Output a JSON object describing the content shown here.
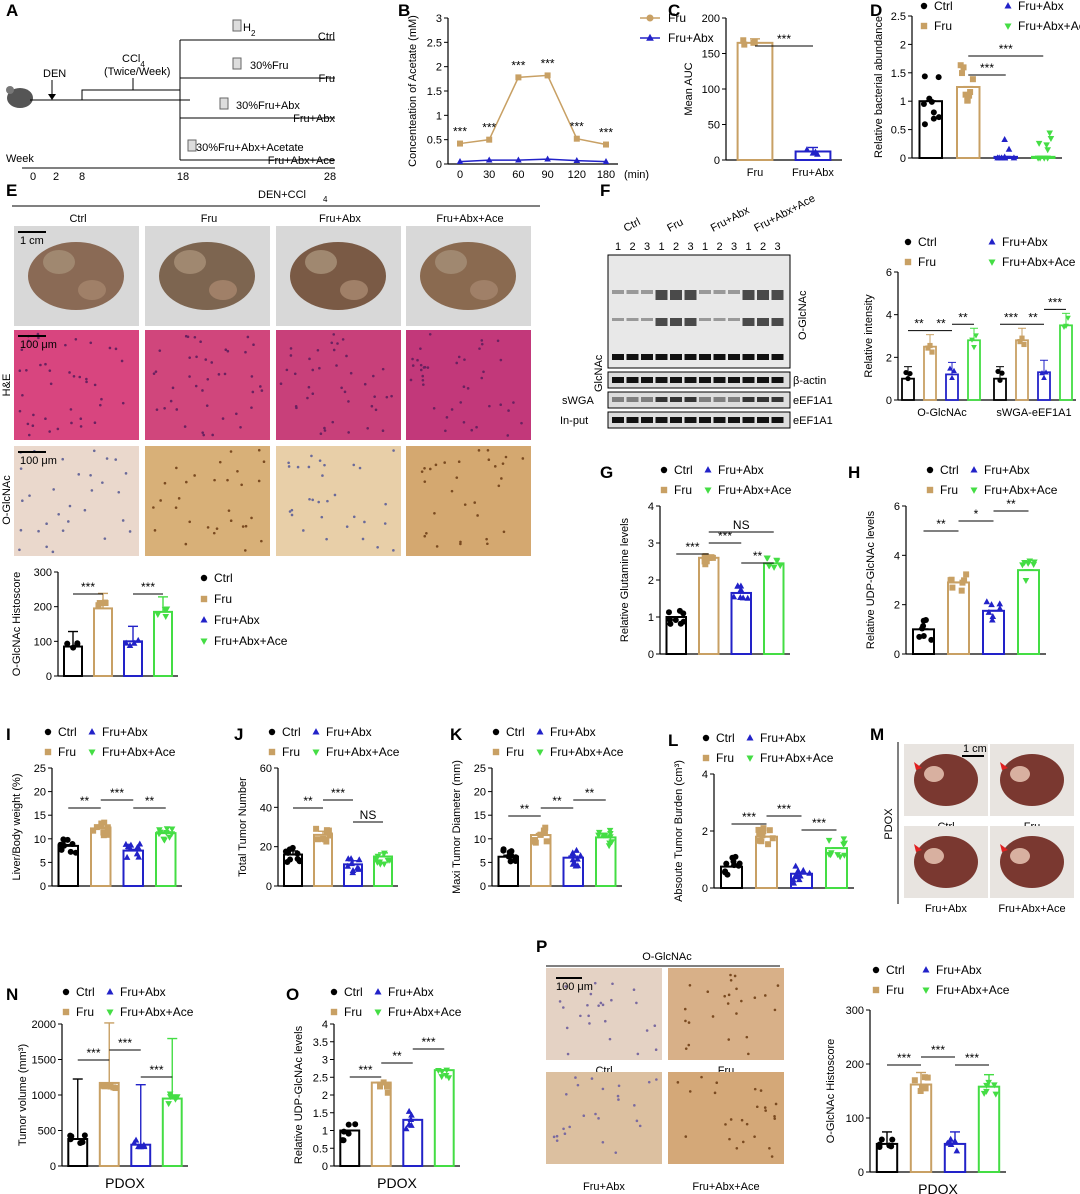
{
  "colors": {
    "ctrl": "#000000",
    "fru": "#c8a064",
    "abx": "#2222c8",
    "ace": "#44dd44"
  },
  "groups": [
    "Ctrl",
    "Fru",
    "Fru+Abx",
    "Fru+Abx+Ace"
  ],
  "panel_labels": [
    "A",
    "B",
    "C",
    "D",
    "E",
    "F",
    "G",
    "H",
    "I",
    "J",
    "K",
    "L",
    "M",
    "N",
    "O",
    "P"
  ],
  "panelA": {
    "week_label": "Week",
    "week_ticks": [
      "0",
      "2",
      "8",
      "18",
      "28"
    ],
    "den": "DEN",
    "ccl4": "CCl4",
    "ccl4_note": "(Twice/Week)",
    "treatments": [
      {
        "drink": "H2O",
        "group": "Ctrl"
      },
      {
        "drink": "30%Fru",
        "group": "Fru"
      },
      {
        "drink": "30%Fru+Abx",
        "group": "Fru+Abx"
      },
      {
        "drink": "30%Fru+Abx+Acetate",
        "group": "Fru+Abx+Ace"
      }
    ]
  },
  "panelE": {
    "header": "DEN+CCl4",
    "scale_liver": "1 cm",
    "scale_he": "100 μm",
    "scale_ihc": "100 μm",
    "row_labels": [
      "H&E",
      "O-GlcNAc"
    ]
  },
  "panelF": {
    "lanes": [
      "1",
      "2",
      "3",
      "1",
      "2",
      "3",
      "1",
      "2",
      "3",
      "1",
      "2",
      "3"
    ],
    "blot_labels": [
      "O-GlcNAc",
      "β-actin",
      "eEF1A1",
      "eEF1A1"
    ],
    "left_labels": [
      "GlcNAc",
      "sWGA",
      "In-put"
    ]
  },
  "panelM": {
    "side": "PDOX",
    "scale": "1 cm",
    "captions": [
      "Ctrl",
      "Fru",
      "Fru+Abx",
      "Fru+Abx+Ace"
    ]
  },
  "panelP": {
    "header": "O-GlcNAc",
    "scale": "100 μm",
    "captions": [
      "Ctrl",
      "Fru",
      "Fru+Abx",
      "Fru+Abx+Ace"
    ]
  },
  "chart_data": [
    {
      "id": "B",
      "type": "line",
      "x": [
        0,
        30,
        60,
        90,
        120,
        180
      ],
      "xlabel": "(min)",
      "ylabel": "Concenteation of Acetate (mM)",
      "ylim": [
        0,
        3
      ],
      "yticks": [
        0,
        0.5,
        1,
        1.5,
        2,
        2.5,
        3
      ],
      "xticks": [
        "0",
        "30",
        "60",
        "90",
        "120",
        "180"
      ],
      "series": [
        {
          "name": "Fru",
          "values": [
            0.42,
            0.5,
            1.78,
            1.82,
            0.52,
            0.4
          ]
        },
        {
          "name": "Fru+Abx",
          "values": [
            0.05,
            0.08,
            0.08,
            0.1,
            0.07,
            0.05
          ]
        }
      ],
      "sig": [
        "***",
        "***",
        "***",
        "***",
        "***",
        "***"
      ]
    },
    {
      "id": "C",
      "type": "bar",
      "categories": [
        "Fru",
        "Fru+Abx"
      ],
      "values": [
        165,
        12
      ],
      "ylabel": "Mean AUC",
      "ylim": [
        0,
        200
      ],
      "yticks": [
        0,
        50,
        100,
        150,
        200
      ],
      "sig": [
        {
          "from": 0,
          "to": 1,
          "label": "***"
        }
      ]
    },
    {
      "id": "D",
      "type": "bar",
      "categories": [
        "Ctrl",
        "Fru",
        "Fru+Abx",
        "Fru+Abx+Ace"
      ],
      "values": [
        1.0,
        1.25,
        0.02,
        0.02
      ],
      "ylabel": "Relative bacterial abundance",
      "ylim": [
        0,
        2.5
      ],
      "yticks": [
        0,
        0.5,
        1,
        1.5,
        2,
        2.5
      ],
      "sig": [
        {
          "from": 1,
          "to": 2,
          "label": "***"
        },
        {
          "from": 1,
          "to": 3,
          "label": "***"
        }
      ]
    },
    {
      "id": "E",
      "type": "bar",
      "categories": [
        "Ctrl",
        "Fru",
        "Fru+Abx",
        "Fru+Abx+Ace"
      ],
      "values": [
        85,
        195,
        100,
        185
      ],
      "ylabel": "O-GlcNAc Histoscore",
      "ylim": [
        0,
        300
      ],
      "yticks": [
        0,
        100,
        200,
        300
      ],
      "sig": [
        {
          "from": 0,
          "to": 1,
          "label": "***"
        },
        {
          "from": 2,
          "to": 3,
          "label": "***"
        }
      ]
    },
    {
      "id": "F",
      "type": "bar",
      "categories": [
        "O-GlcNAc",
        "sWGA-eEF1A1"
      ],
      "ylabel": "Relative intensity",
      "ylim": [
        0,
        6
      ],
      "yticks": [
        0,
        2,
        4,
        6
      ],
      "series": [
        {
          "name": "Ctrl",
          "values": [
            1.0,
            1.0
          ]
        },
        {
          "name": "Fru",
          "values": [
            2.5,
            2.8
          ]
        },
        {
          "name": "Fru+Abx",
          "values": [
            1.2,
            1.3
          ]
        },
        {
          "name": "Fru+Abx+Ace",
          "values": [
            2.8,
            3.5
          ]
        }
      ],
      "sig": [
        [
          "**",
          "**",
          "**"
        ],
        [
          "***",
          "**",
          "***"
        ]
      ]
    },
    {
      "id": "G",
      "type": "bar",
      "categories": [
        "Ctrl",
        "Fru",
        "Fru+Abx",
        "Fru+Abx+Ace"
      ],
      "values": [
        1.0,
        2.6,
        1.65,
        2.45
      ],
      "ylabel": "Relative Glutamine levels",
      "ylim": [
        0,
        4
      ],
      "yticks": [
        0,
        1,
        2,
        3,
        4
      ],
      "sig": [
        {
          "from": 0,
          "to": 1,
          "label": "***"
        },
        {
          "from": 1,
          "to": 2,
          "label": "***"
        },
        {
          "from": 1,
          "to": 3,
          "label": "NS"
        },
        {
          "from": 2,
          "to": 3,
          "label": "**"
        }
      ]
    },
    {
      "id": "H",
      "type": "bar",
      "categories": [
        "Ctrl",
        "Fru",
        "Fru+Abx",
        "Fru+Abx+Ace"
      ],
      "values": [
        1.0,
        2.9,
        1.75,
        3.4
      ],
      "ylabel": "Relative UDP-GlcNAc levels",
      "ylim": [
        0,
        6
      ],
      "yticks": [
        0,
        2,
        4,
        6
      ],
      "sig": [
        {
          "from": 0,
          "to": 1,
          "label": "**"
        },
        {
          "from": 1,
          "to": 2,
          "label": "*"
        },
        {
          "from": 2,
          "to": 3,
          "label": "**"
        }
      ]
    },
    {
      "id": "I",
      "type": "bar",
      "categories": [
        "Ctrl",
        "Fru",
        "Fru+Abx",
        "Fru+Abx+Ace"
      ],
      "values": [
        8.5,
        12.2,
        7.5,
        11.2
      ],
      "ylabel": "Liver/Body weight (%)",
      "ylim": [
        0,
        25
      ],
      "yticks": [
        0,
        5,
        10,
        15,
        20,
        25
      ],
      "sig": [
        {
          "from": 0,
          "to": 1,
          "label": "**"
        },
        {
          "from": 1,
          "to": 2,
          "label": "***"
        },
        {
          "from": 2,
          "to": 3,
          "label": "**"
        }
      ]
    },
    {
      "id": "J",
      "type": "bar",
      "categories": [
        "Ctrl",
        "Fru",
        "Fru+Abx",
        "Fru+Abx+Ace"
      ],
      "values": [
        16,
        26,
        11,
        15
      ],
      "ylabel": "Total Tumor Number",
      "ylim": [
        0,
        60
      ],
      "yticks": [
        0,
        20,
        40,
        60
      ],
      "sig": [
        {
          "from": 0,
          "to": 1,
          "label": "**"
        },
        {
          "from": 1,
          "to": 2,
          "label": "***"
        },
        {
          "from": 2,
          "to": 3,
          "label": "NS"
        }
      ]
    },
    {
      "id": "K",
      "type": "bar",
      "categories": [
        "Ctrl",
        "Fru",
        "Fru+Abx",
        "Fru+Abx+Ace"
      ],
      "values": [
        6.2,
        10.8,
        6.0,
        10.3
      ],
      "ylabel": "Maxi Tumor Diameter (mm)",
      "ylim": [
        0,
        25
      ],
      "yticks": [
        0,
        5,
        10,
        15,
        20,
        25
      ],
      "sig": [
        {
          "from": 0,
          "to": 1,
          "label": "**"
        },
        {
          "from": 1,
          "to": 2,
          "label": "**"
        },
        {
          "from": 2,
          "to": 3,
          "label": "**"
        }
      ]
    },
    {
      "id": "L",
      "type": "bar",
      "categories": [
        "Ctrl",
        "Fru",
        "Fru+Abx",
        "Fru+Abx+Ace"
      ],
      "values": [
        0.75,
        1.8,
        0.5,
        1.4
      ],
      "ylabel": "Absoute Tumor Burden (cm³)",
      "ylim": [
        0,
        4
      ],
      "yticks": [
        0,
        2,
        4
      ],
      "sig": [
        {
          "from": 0,
          "to": 1,
          "label": "***"
        },
        {
          "from": 1,
          "to": 2,
          "label": "***"
        },
        {
          "from": 2,
          "to": 3,
          "label": "***"
        }
      ]
    },
    {
      "id": "N",
      "type": "bar",
      "categories": [
        "Ctrl",
        "Fru",
        "Fru+Abx",
        "Fru+Abx+Ace"
      ],
      "values": [
        380,
        1170,
        300,
        950
      ],
      "ylabel": "Tumor volume (mm³)",
      "xlabel": "PDOX",
      "ylim": [
        0,
        2000
      ],
      "yticks": [
        0,
        500,
        1000,
        1500,
        2000
      ],
      "sig": [
        {
          "from": 0,
          "to": 1,
          "label": "***"
        },
        {
          "from": 1,
          "to": 2,
          "label": "***"
        },
        {
          "from": 2,
          "to": 3,
          "label": "***"
        }
      ]
    },
    {
      "id": "O",
      "type": "bar",
      "categories": [
        "Ctrl",
        "Fru",
        "Fru+Abx",
        "Fru+Abx+Ace"
      ],
      "values": [
        1.0,
        2.35,
        1.3,
        2.7
      ],
      "ylabel": "Relative UDP-GlcNAc levels",
      "xlabel": "PDOX",
      "ylim": [
        0,
        4
      ],
      "yticks": [
        0,
        0.5,
        1,
        1.5,
        2,
        2.5,
        3,
        3.5,
        4
      ],
      "sig": [
        {
          "from": 0,
          "to": 1,
          "label": "***"
        },
        {
          "from": 1,
          "to": 2,
          "label": "**"
        },
        {
          "from": 2,
          "to": 3,
          "label": "***"
        }
      ]
    },
    {
      "id": "P",
      "type": "bar",
      "categories": [
        "Ctrl",
        "Fru",
        "Fru+Abx",
        "Fru+Abx+Ace"
      ],
      "values": [
        52,
        162,
        52,
        158
      ],
      "ylabel": "O-GlcNAc Histoscore",
      "xlabel": "PDOX",
      "ylim": [
        0,
        300
      ],
      "yticks": [
        0,
        100,
        200,
        300
      ],
      "sig": [
        {
          "from": 0,
          "to": 1,
          "label": "***"
        },
        {
          "from": 1,
          "to": 2,
          "label": "***"
        },
        {
          "from": 2,
          "to": 3,
          "label": "***"
        }
      ]
    }
  ]
}
